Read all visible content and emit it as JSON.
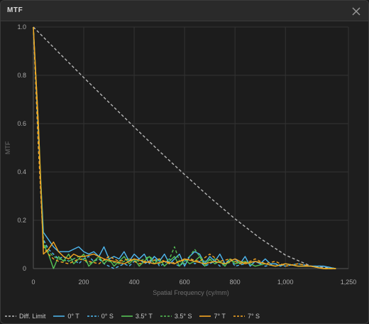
{
  "window": {
    "title": "MTF"
  },
  "close_icon": "close-icon",
  "chart_data": {
    "type": "line",
    "title": "",
    "xlabel": "Spatial Frequency (cy/mm)",
    "ylabel": "MTF",
    "xlim": [
      0,
      1250
    ],
    "ylim": [
      0,
      1.0
    ],
    "x_ticks": [
      0,
      200,
      400,
      600,
      800,
      1000,
      1250
    ],
    "x_tick_labels": [
      "0",
      "200",
      "400",
      "600",
      "800",
      "1,000",
      "1,250"
    ],
    "y_ticks": [
      0,
      0.2,
      0.4,
      0.6,
      0.8,
      1.0
    ],
    "y_tick_labels": [
      "0",
      "0.2",
      "0.4",
      "0.6",
      "0.8",
      "1.0"
    ],
    "grid": true,
    "legend": "bottom",
    "series": [
      {
        "name": "Diff. Limit",
        "color": "#b8b8b8",
        "dash": true,
        "x": [
          0,
          100,
          200,
          300,
          400,
          500,
          600,
          700,
          800,
          900,
          1000,
          1100,
          1200
        ],
        "y": [
          1.0,
          0.895,
          0.791,
          0.688,
          0.586,
          0.486,
          0.389,
          0.295,
          0.206,
          0.125,
          0.056,
          0.011,
          0.0
        ]
      },
      {
        "name": "0° T",
        "color": "#4fb8f0",
        "dash": false,
        "x": [
          0,
          20,
          40,
          60,
          80,
          100,
          120,
          140,
          160,
          180,
          200,
          220,
          240,
          260,
          280,
          300,
          320,
          340,
          360,
          380,
          400,
          420,
          440,
          460,
          480,
          500,
          520,
          540,
          560,
          580,
          600,
          620,
          640,
          660,
          680,
          700,
          720,
          740,
          760,
          780,
          800,
          820,
          840,
          860,
          880,
          900,
          920,
          940,
          960,
          980,
          1000,
          1050,
          1100,
          1150,
          1200
        ],
        "y": [
          1.0,
          0.55,
          0.15,
          0.12,
          0.09,
          0.07,
          0.07,
          0.07,
          0.08,
          0.09,
          0.07,
          0.06,
          0.07,
          0.05,
          0.09,
          0.04,
          0.05,
          0.04,
          0.07,
          0.03,
          0.06,
          0.04,
          0.06,
          0.02,
          0.05,
          0.03,
          0.06,
          0.02,
          0.04,
          0.06,
          0.01,
          0.05,
          0.07,
          0.06,
          0.02,
          0.05,
          0.03,
          0.06,
          0.02,
          0.03,
          0.04,
          0.02,
          0.05,
          0.01,
          0.03,
          0.02,
          0.04,
          0.02,
          0.02,
          0.01,
          0.02,
          0.01,
          0.01,
          0.01,
          0.0
        ]
      },
      {
        "name": "0° S",
        "color": "#4fb8f0",
        "dash": true,
        "x": [
          0,
          20,
          40,
          60,
          80,
          100,
          120,
          140,
          160,
          180,
          200,
          220,
          240,
          260,
          280,
          300,
          320,
          340,
          360,
          380,
          400,
          420,
          440,
          460,
          480,
          500,
          520,
          540,
          560,
          580,
          600,
          620,
          640,
          660,
          680,
          700,
          720,
          740,
          760,
          780,
          800,
          840,
          880,
          920,
          960,
          1000,
          1050,
          1100,
          1150,
          1200
        ],
        "y": [
          1.0,
          0.5,
          0.12,
          0.08,
          0.06,
          0.04,
          0.05,
          0.03,
          0.04,
          0.02,
          0.04,
          0.05,
          0.03,
          0.04,
          0.02,
          0.01,
          0.0,
          0.01,
          0.02,
          0.01,
          0.03,
          0.04,
          0.02,
          0.03,
          0.05,
          0.01,
          0.02,
          0.04,
          0.02,
          0.01,
          0.03,
          0.05,
          0.02,
          0.03,
          0.01,
          0.02,
          0.03,
          0.01,
          0.02,
          0.04,
          0.01,
          0.02,
          0.03,
          0.01,
          0.02,
          0.01,
          0.02,
          0.01,
          0.01,
          0.0
        ]
      },
      {
        "name": "3.5° T",
        "color": "#55c255",
        "dash": false,
        "x": [
          0,
          20,
          40,
          60,
          80,
          100,
          120,
          140,
          160,
          180,
          200,
          220,
          240,
          260,
          280,
          300,
          320,
          340,
          360,
          380,
          400,
          420,
          440,
          460,
          480,
          500,
          520,
          540,
          560,
          580,
          600,
          620,
          640,
          660,
          680,
          700,
          720,
          740,
          760,
          780,
          800,
          840,
          880,
          920,
          960,
          1000,
          1050,
          1100,
          1150,
          1200
        ],
        "y": [
          1.0,
          0.6,
          0.1,
          0.06,
          0.0,
          0.05,
          0.03,
          0.06,
          0.02,
          0.04,
          0.06,
          0.01,
          0.03,
          0.05,
          0.02,
          0.04,
          0.01,
          0.03,
          0.05,
          0.02,
          0.04,
          0.01,
          0.03,
          0.05,
          0.02,
          0.04,
          0.01,
          0.03,
          0.05,
          0.01,
          0.04,
          0.02,
          0.03,
          0.05,
          0.01,
          0.04,
          0.02,
          0.03,
          0.01,
          0.04,
          0.02,
          0.03,
          0.01,
          0.02,
          0.01,
          0.02,
          0.01,
          0.01,
          0.0,
          0.0
        ]
      },
      {
        "name": "3.5° S",
        "color": "#55c255",
        "dash": true,
        "x": [
          0,
          20,
          40,
          60,
          80,
          100,
          140,
          180,
          220,
          260,
          300,
          340,
          380,
          420,
          460,
          500,
          540,
          560,
          580,
          600,
          640,
          660,
          680,
          720,
          760,
          800,
          840,
          880,
          920,
          960,
          1000,
          1050,
          1100,
          1150,
          1200
        ],
        "y": [
          1.0,
          0.55,
          0.11,
          0.07,
          0.05,
          0.04,
          0.03,
          0.05,
          0.02,
          0.04,
          0.03,
          0.02,
          0.04,
          0.03,
          0.05,
          0.02,
          0.04,
          0.09,
          0.03,
          0.02,
          0.08,
          0.05,
          0.03,
          0.04,
          0.02,
          0.03,
          0.02,
          0.03,
          0.02,
          0.01,
          0.02,
          0.01,
          0.01,
          0.0,
          0.0
        ]
      },
      {
        "name": "7° T",
        "color": "#f5a623",
        "dash": false,
        "x": [
          0,
          20,
          40,
          60,
          80,
          100,
          120,
          140,
          160,
          180,
          200,
          240,
          280,
          320,
          360,
          400,
          440,
          480,
          520,
          560,
          600,
          640,
          680,
          720,
          760,
          800,
          840,
          880,
          920,
          960,
          1000,
          1050,
          1100,
          1150,
          1200
        ],
        "y": [
          1.0,
          0.6,
          0.06,
          0.08,
          0.11,
          0.07,
          0.05,
          0.04,
          0.06,
          0.05,
          0.05,
          0.06,
          0.04,
          0.03,
          0.02,
          0.04,
          0.03,
          0.02,
          0.03,
          0.02,
          0.04,
          0.03,
          0.02,
          0.03,
          0.02,
          0.04,
          0.02,
          0.03,
          0.02,
          0.01,
          0.02,
          0.01,
          0.01,
          0.0,
          0.0
        ]
      },
      {
        "name": "7° S",
        "color": "#f5a623",
        "dash": true,
        "x": [
          0,
          20,
          40,
          60,
          80,
          100,
          140,
          180,
          220,
          260,
          300,
          340,
          380,
          420,
          460,
          500,
          540,
          580,
          620,
          660,
          700,
          740,
          780,
          820,
          860,
          880,
          920,
          960,
          1000,
          1050,
          1100,
          1150,
          1200
        ],
        "y": [
          1.0,
          0.5,
          0.09,
          0.06,
          0.04,
          0.03,
          0.02,
          0.04,
          0.03,
          0.02,
          0.05,
          0.03,
          0.04,
          0.02,
          0.03,
          0.04,
          0.02,
          0.03,
          0.04,
          0.03,
          0.06,
          0.03,
          0.04,
          0.02,
          0.03,
          0.04,
          0.02,
          0.03,
          0.01,
          0.02,
          0.01,
          0.0,
          0.0
        ]
      }
    ]
  }
}
